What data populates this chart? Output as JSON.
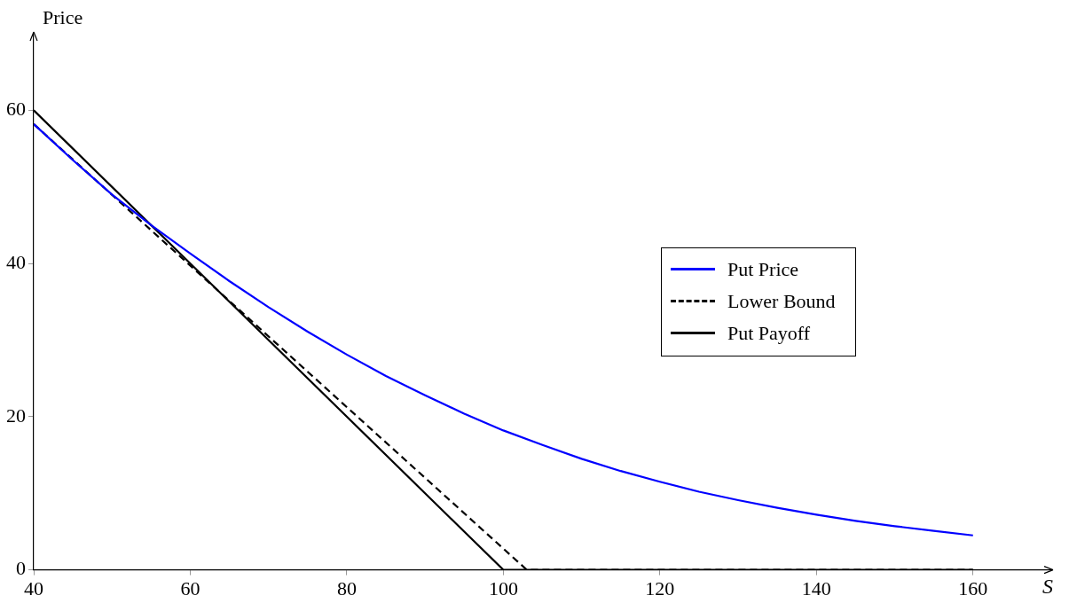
{
  "chart_data": {
    "type": "line",
    "xlabel": "S",
    "ylabel": "Price",
    "xlim": [
      40,
      170
    ],
    "xticks": [
      40,
      60,
      80,
      100,
      120,
      140,
      160
    ],
    "ylim": [
      0,
      70
    ],
    "yticks": [
      0,
      20,
      40,
      60
    ],
    "grid": false,
    "legend": "right",
    "marker": "none",
    "series": [
      {
        "name": "Put Price",
        "color": "#0000ff",
        "line_style": "solid",
        "x": [
          40,
          45,
          50,
          55,
          60,
          65,
          70,
          75,
          80,
          85,
          90,
          95,
          100,
          105,
          110,
          115,
          120,
          125,
          130,
          135,
          140,
          145,
          150,
          155,
          160
        ],
        "values": [
          58.2,
          53.5,
          49,
          45,
          41.3,
          37.7,
          34.3,
          31.1,
          28.1,
          25.3,
          22.8,
          20.4,
          18.2,
          16.3,
          14.5,
          12.9,
          11.5,
          10.2,
          9.1,
          8.1,
          7.2,
          6.4,
          5.7,
          5.1,
          4.5
        ]
      },
      {
        "name": "Lower Bound",
        "color": "#000000",
        "line_style": "dashed",
        "x": [
          40,
          103,
          160
        ],
        "values": [
          58.2,
          0,
          0
        ]
      },
      {
        "name": "Put Payoff",
        "color": "#000000",
        "line_style": "solid",
        "x": [
          40,
          100,
          160
        ],
        "values": [
          60,
          0,
          0
        ]
      }
    ]
  }
}
